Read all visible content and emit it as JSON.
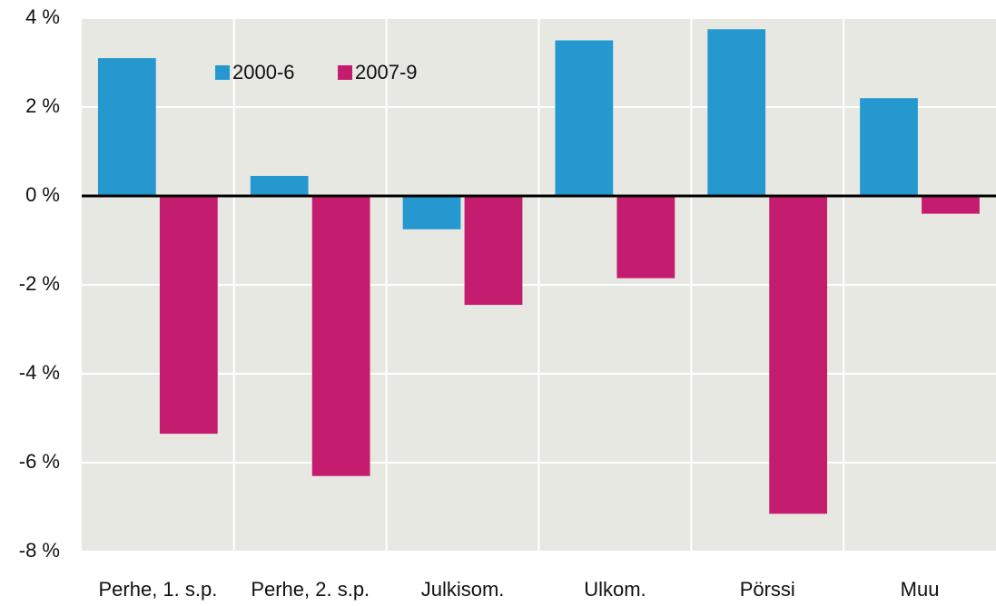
{
  "chart_data": {
    "type": "bar",
    "categories": [
      "Perhe, 1. s.p.",
      "Perhe, 2. s.p.",
      "Julkisom.",
      "Ulkom.",
      "Pörssi",
      "Muu"
    ],
    "series": [
      {
        "name": "2000-6",
        "color": "#2698d0",
        "values": [
          3.1,
          0.45,
          -0.75,
          3.5,
          3.75,
          2.2
        ]
      },
      {
        "name": "2007-9",
        "color": "#c41c6e",
        "values": [
          -5.35,
          -6.3,
          -2.45,
          -1.85,
          -7.15,
          -0.4
        ]
      }
    ],
    "ylim": [
      -8,
      4
    ],
    "yticks": [
      {
        "value": -8,
        "label": "-8 %"
      },
      {
        "value": -6,
        "label": "-6 %"
      },
      {
        "value": -4,
        "label": "-4 %"
      },
      {
        "value": -2,
        "label": "-2 %"
      },
      {
        "value": 0,
        "label": "0 %"
      },
      {
        "value": 2,
        "label": "2 %"
      },
      {
        "value": 4,
        "label": "4 %"
      }
    ],
    "grid": true,
    "legend": "top"
  }
}
